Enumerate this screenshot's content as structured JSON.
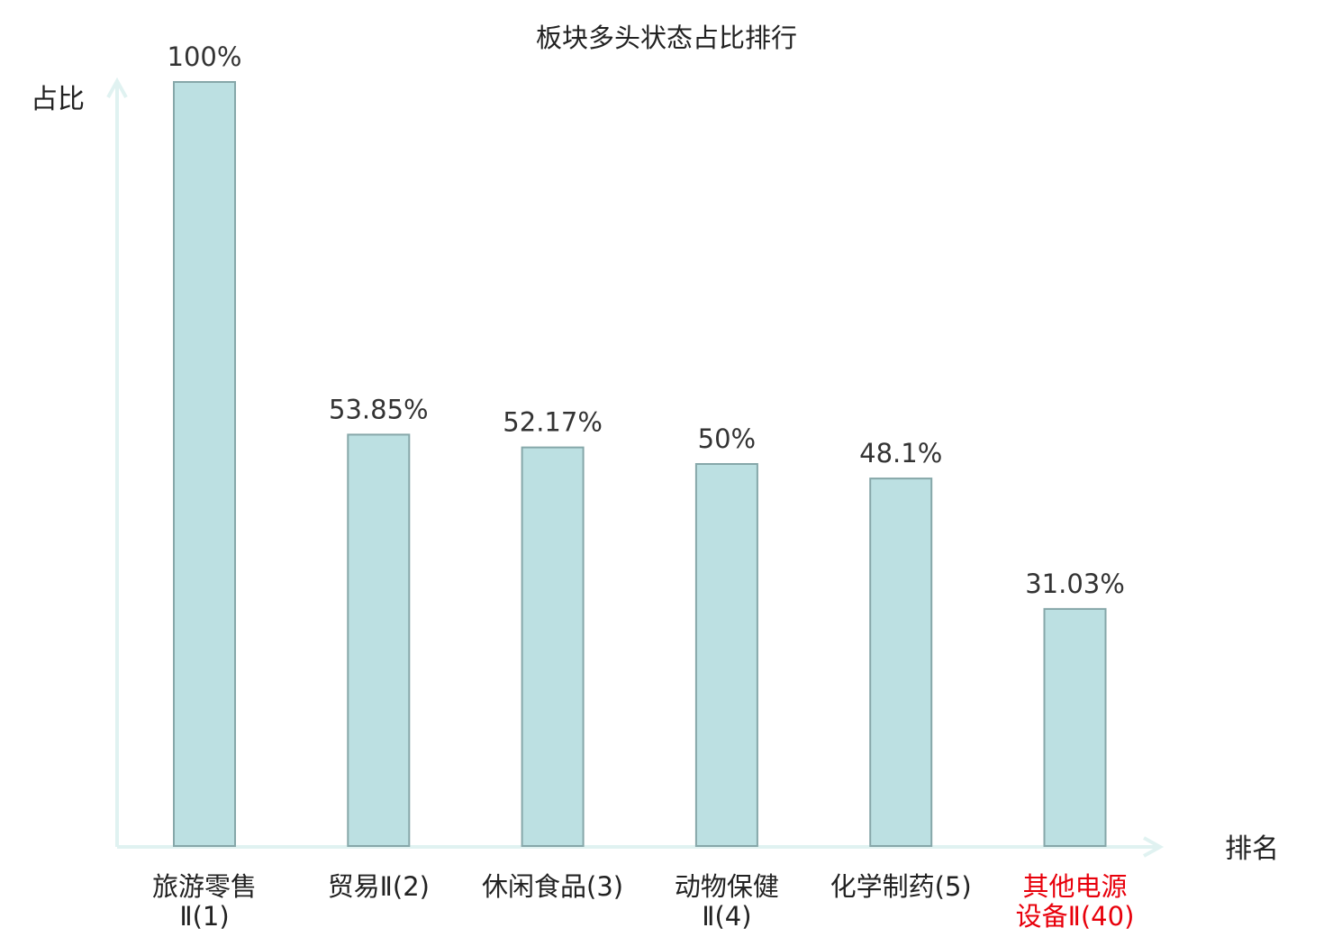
{
  "chart_data": {
    "type": "bar",
    "title": "板块多头状态占比排行",
    "ylabel": "占比",
    "xlabel": "排名",
    "ylim": [
      0,
      100
    ],
    "grid": false,
    "legend": "none",
    "categories": [
      [
        "旅游零售",
        "Ⅱ(1)"
      ],
      [
        "贸易Ⅱ(2)"
      ],
      [
        "休闲食品(3)"
      ],
      [
        "动物保健",
        "Ⅱ(4)"
      ],
      [
        "化学制药(5)"
      ],
      [
        "其他电源",
        "设备Ⅱ(40)"
      ]
    ],
    "values": [
      100,
      53.85,
      52.17,
      50,
      48.1,
      31.03
    ],
    "value_labels": [
      "100%",
      "53.85%",
      "52.17%",
      "50%",
      "48.1%",
      "31.03%"
    ],
    "highlighted_index": 5,
    "colors": {
      "bar_fill": "#bce0e2",
      "bar_stroke": "#86a7a9",
      "axis": "#e0f2f1",
      "text": "#222222",
      "highlight_text": "#e8000b"
    }
  }
}
